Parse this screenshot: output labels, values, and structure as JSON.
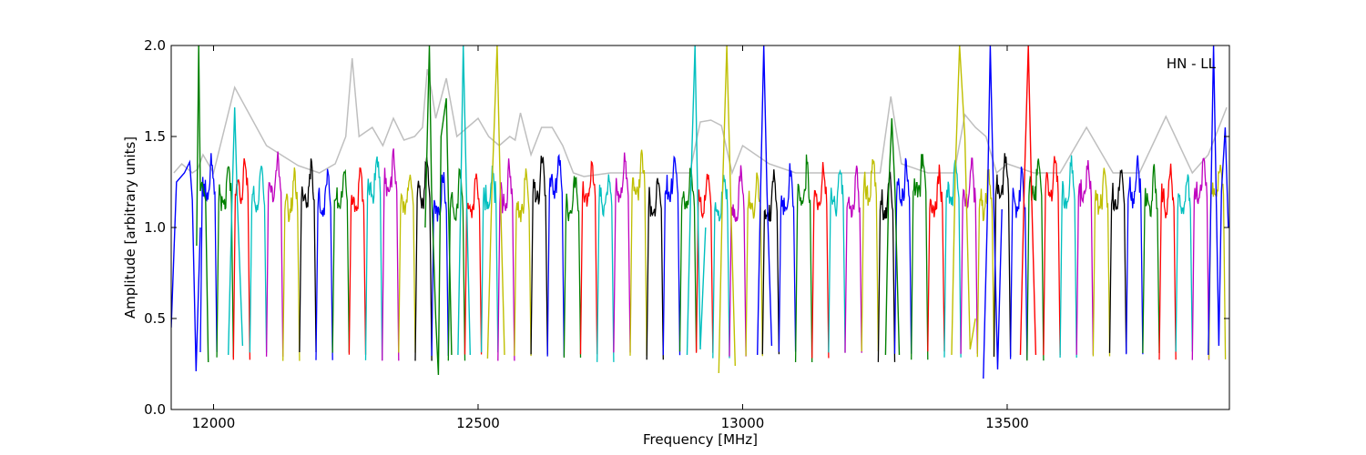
{
  "chart_data": {
    "type": "line",
    "title": "",
    "annotation": "HN - LL",
    "xlabel": "Frequency [MHz]",
    "ylabel": "Amplitude [arbitrary units]",
    "xlim": [
      11920,
      13920
    ],
    "ylim": [
      0.0,
      2.0
    ],
    "xticks": [
      12000,
      12500,
      13000,
      13500
    ],
    "xtick_labels": [
      "12000",
      "12500",
      "13000",
      "13500"
    ],
    "yticks": [
      0.0,
      0.5,
      1.0,
      1.5,
      2.0
    ],
    "ytick_labels": [
      "0.0",
      "0.5",
      "1.0",
      "1.5",
      "2.0"
    ],
    "grid": false,
    "colors": {
      "background_trace": "#bfbfbf",
      "cycle": [
        "#0000ff",
        "#008000",
        "#ff0000",
        "#00bfbf",
        "#bf00bf",
        "#bfbf00",
        "#000000"
      ]
    },
    "channel_width_mhz": 31.25,
    "series": [
      {
        "color": "#bfbfbf",
        "x": [
          11925,
          11940,
          11960,
          11970,
          11980,
          12000,
          12040,
          12100,
          12160,
          12200,
          12230,
          12250,
          12262,
          12275,
          12300,
          12320,
          12340,
          12360,
          12380,
          12395,
          12404,
          12412,
          12420,
          12440,
          12460,
          12480,
          12500,
          12520,
          12540,
          12560,
          12570,
          12580,
          12600,
          12620,
          12640,
          12660,
          12680,
          12700,
          12750,
          12800,
          12850,
          12900,
          12920,
          12940,
          12960,
          12980,
          13000,
          13050,
          13100,
          13200,
          13260,
          13280,
          13300,
          13350,
          13400,
          13420,
          13440,
          13460,
          13480,
          13500,
          13550,
          13600,
          13650,
          13700,
          13750,
          13800,
          13850,
          13880,
          13900,
          13915
        ],
        "y": [
          1.3,
          1.35,
          1.3,
          1.32,
          1.4,
          1.3,
          1.77,
          1.45,
          1.34,
          1.3,
          1.35,
          1.5,
          1.93,
          1.5,
          1.55,
          1.45,
          1.6,
          1.48,
          1.5,
          1.55,
          1.87,
          1.75,
          1.6,
          1.82,
          1.5,
          1.55,
          1.6,
          1.5,
          1.45,
          1.5,
          1.48,
          1.63,
          1.4,
          1.55,
          1.55,
          1.45,
          1.3,
          1.28,
          1.3,
          1.3,
          1.3,
          1.3,
          1.58,
          1.59,
          1.56,
          1.3,
          1.45,
          1.35,
          1.3,
          1.3,
          1.3,
          1.72,
          1.35,
          1.3,
          1.3,
          1.62,
          1.55,
          1.5,
          1.3,
          1.35,
          1.3,
          1.3,
          1.55,
          1.3,
          1.3,
          1.61,
          1.3,
          1.4,
          1.55,
          1.66
        ]
      },
      {
        "color": "#0000ff",
        "x": [
          11920,
          11930,
          11945,
          11955,
          11960,
          11967,
          11975
        ],
        "y": [
          0.45,
          1.25,
          1.3,
          1.36,
          1.15,
          0.21,
          1.0
        ]
      },
      {
        "color": "#008000",
        "x": [
          11968,
          11972,
          11975,
          11978,
          11985,
          11990
        ],
        "y": [
          0.9,
          2.0,
          1.2,
          1.25,
          1.15,
          0.26
        ]
      },
      {
        "color": "#00bfbf",
        "x": [
          12028,
          12035,
          12040,
          12045,
          12055
        ],
        "y": [
          0.3,
          1.15,
          1.66,
          1.15,
          0.35
        ]
      },
      {
        "color": "#008000",
        "x": [
          12400,
          12408,
          12412,
          12420,
          12425,
          12430,
          12440,
          12450
        ],
        "y": [
          1.0,
          2.0,
          1.2,
          0.5,
          0.19,
          1.5,
          1.71,
          0.3
        ]
      },
      {
        "color": "#00bfbf",
        "x": [
          12462,
          12468,
          12472,
          12478,
          12485
        ],
        "y": [
          0.3,
          1.3,
          2.0,
          1.2,
          0.3
        ]
      },
      {
        "color": "#bfbf00",
        "x": [
          12518,
          12526,
          12536,
          12542,
          12550
        ],
        "y": [
          0.28,
          1.2,
          2.0,
          1.2,
          0.3
        ]
      },
      {
        "color": "#00bfbf",
        "x": [
          12895,
          12902,
          12910,
          12920,
          12930
        ],
        "y": [
          0.3,
          1.2,
          2.0,
          0.33,
          1.0
        ]
      },
      {
        "color": "#bfbf00",
        "x": [
          12955,
          12962,
          12970,
          12978,
          12986
        ],
        "y": [
          0.2,
          1.2,
          2.0,
          1.1,
          0.24
        ]
      },
      {
        "color": "#0000ff",
        "x": [
          13028,
          13034,
          13040,
          13046,
          13055
        ],
        "y": [
          0.3,
          1.2,
          2.0,
          1.2,
          0.35
        ]
      },
      {
        "color": "#008000",
        "x": [
          13270,
          13276,
          13282,
          13288,
          13296
        ],
        "y": [
          0.3,
          1.2,
          1.6,
          1.2,
          0.3
        ]
      },
      {
        "color": "#bfbf00",
        "x": [
          13395,
          13402,
          13410,
          13420,
          13430,
          13440
        ],
        "y": [
          0.3,
          1.3,
          2.0,
          1.5,
          0.33,
          0.5
        ]
      },
      {
        "color": "#0000ff",
        "x": [
          13455,
          13462,
          13468,
          13474,
          13482,
          13490
        ],
        "y": [
          0.17,
          1.0,
          2.0,
          1.2,
          0.22,
          1.1
        ]
      },
      {
        "color": "#ff0000",
        "x": [
          13525,
          13532,
          13540,
          13546,
          13554
        ],
        "y": [
          0.3,
          1.2,
          2.0,
          1.2,
          0.3
        ]
      },
      {
        "color": "#0000ff",
        "x": [
          13880,
          13890,
          13900,
          13905,
          13912,
          13918
        ],
        "y": [
          0.3,
          2.0,
          0.35,
          1.2,
          1.55,
          1.0
        ]
      }
    ]
  }
}
